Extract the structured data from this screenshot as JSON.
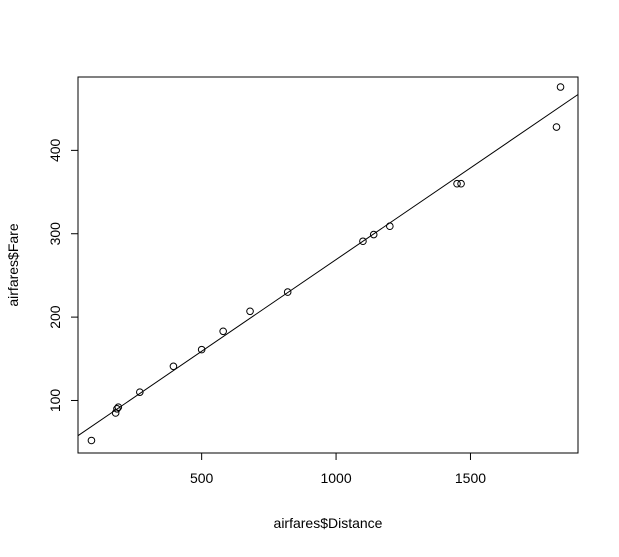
{
  "chart_data": {
    "type": "scatter",
    "title": "",
    "xlabel": "airfares$Distance",
    "ylabel": "airfares$Fare",
    "xlim": [
      40,
      1900
    ],
    "ylim": [
      37,
      488
    ],
    "x_ticks": [
      500,
      1000,
      1500
    ],
    "y_ticks": [
      100,
      200,
      300,
      400
    ],
    "grid": false,
    "points": [
      {
        "x": 90,
        "y": 52
      },
      {
        "x": 180,
        "y": 85
      },
      {
        "x": 185,
        "y": 90
      },
      {
        "x": 190,
        "y": 92
      },
      {
        "x": 270,
        "y": 110
      },
      {
        "x": 395,
        "y": 141
      },
      {
        "x": 500,
        "y": 161
      },
      {
        "x": 580,
        "y": 183
      },
      {
        "x": 680,
        "y": 207
      },
      {
        "x": 820,
        "y": 230
      },
      {
        "x": 1100,
        "y": 291
      },
      {
        "x": 1140,
        "y": 299
      },
      {
        "x": 1200,
        "y": 309
      },
      {
        "x": 1450,
        "y": 360
      },
      {
        "x": 1465,
        "y": 360
      },
      {
        "x": 1820,
        "y": 428
      },
      {
        "x": 1835,
        "y": 476
      }
    ],
    "fit_line": {
      "intercept": 49,
      "slope": 0.22
    }
  }
}
